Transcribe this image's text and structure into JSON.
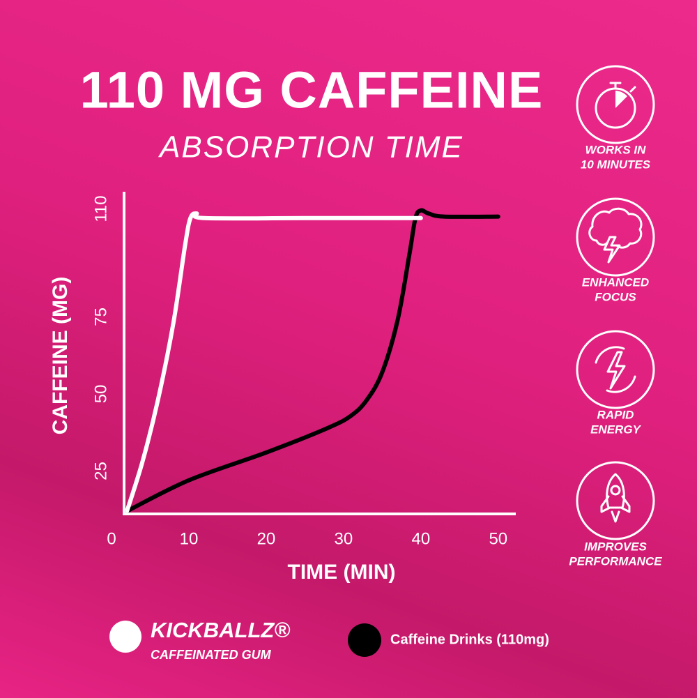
{
  "chart_data": {
    "type": "line",
    "title": "110 MG CAFFEINE",
    "subtitle": "ABSORPTION TIME",
    "x_label": "TIME (MIN)",
    "y_label": "CAFFEINE (MG)",
    "xlim": [
      0,
      52
    ],
    "ylim": [
      12,
      116
    ],
    "xticks": [
      0,
      10,
      20,
      30,
      40,
      50
    ],
    "yticks": [
      25,
      50,
      75,
      110
    ],
    "legend_caption": "CAFFEINATED GUM",
    "series": [
      {
        "name": "KICKBALLZ®",
        "color": "#ffffff",
        "x": [
          2,
          4,
          6,
          8,
          9.5,
          10.2,
          11,
          12,
          25,
          40
        ],
        "values": [
          12,
          28,
          48,
          73,
          98,
          107,
          108.5,
          107,
          107,
          107
        ]
      },
      {
        "name": "Caffeine Drinks (110mg)",
        "color": "#000000",
        "x": [
          2,
          10,
          20,
          28,
          31,
          33,
          35,
          37,
          38.5,
          39.3,
          40,
          41,
          43,
          50
        ],
        "values": [
          12,
          22,
          31,
          39,
          43,
          48,
          57,
          74,
          95,
          107,
          109.5,
          108.5,
          107.5,
          107.5
        ]
      }
    ]
  },
  "features": [
    {
      "lines": [
        "WORKS IN",
        "10 MINUTES"
      ]
    },
    {
      "lines": [
        "ENHANCED",
        "FOCUS"
      ]
    },
    {
      "lines": [
        "RAPID",
        "ENERGY"
      ]
    },
    {
      "lines": [
        "IMPROVES",
        "PERFORMANCE"
      ]
    }
  ]
}
